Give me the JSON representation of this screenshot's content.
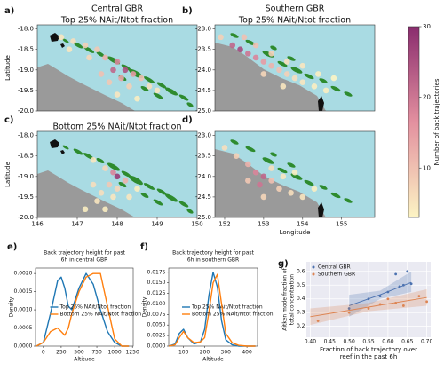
{
  "chart_data": [
    {
      "type": "map",
      "panel": "a)",
      "title": "Central GBR",
      "subtitle": "Top 25% NAit/Ntot fraction",
      "ylabel": "Latitude",
      "xlim": [
        146,
        150
      ],
      "ylim": [
        -20.0,
        -17.9
      ],
      "yticks": [
        {
          "value": -18.0,
          "label": "-18.0"
        },
        {
          "value": -18.5,
          "label": "-18.5"
        },
        {
          "value": -19.0,
          "label": "-19.0"
        },
        {
          "value": -19.5,
          "label": "-19.5"
        },
        {
          "value": -20.0,
          "label": "-20.0"
        }
      ],
      "x": [
        146.6,
        146.9,
        147.2,
        147.5,
        147.3,
        147.7,
        148.0,
        147.9,
        148.2,
        148.4,
        148.1,
        148.6,
        147.8,
        148.3,
        148.8,
        149.0,
        148.0,
        148.5,
        147.6,
        146.8
      ],
      "y": [
        -18.2,
        -18.3,
        -18.4,
        -18.5,
        -18.7,
        -18.7,
        -18.8,
        -19.0,
        -19.0,
        -19.1,
        -19.2,
        -19.2,
        -19.3,
        -19.4,
        -19.4,
        -19.5,
        -19.6,
        -19.7,
        -19.1,
        -18.5
      ],
      "values": [
        5,
        6,
        8,
        9,
        7,
        12,
        18,
        22,
        25,
        15,
        14,
        10,
        9,
        8,
        6,
        5,
        5,
        4,
        10,
        5
      ]
    },
    {
      "type": "map",
      "panel": "b)",
      "title": "Southern GBR",
      "subtitle": "Top 25% NAit/Ntot fraction",
      "xlim": [
        151.75,
        155.85
      ],
      "ylim": [
        -25.0,
        -22.9
      ],
      "yticks": [
        {
          "value": -23.0,
          "label": "-23.0"
        },
        {
          "value": -23.5,
          "label": "-23.5"
        },
        {
          "value": -24.0,
          "label": "-24.0"
        },
        {
          "value": -24.5,
          "label": "-24.5"
        },
        {
          "value": -25.0,
          "label": "-25.0"
        }
      ],
      "x": [
        151.9,
        152.2,
        152.4,
        152.6,
        152.8,
        153.0,
        153.2,
        153.4,
        153.6,
        153.8,
        154.0,
        154.3,
        154.6,
        153.0,
        152.8,
        153.2,
        153.6,
        154.0,
        154.4,
        154.8,
        152.5,
        153.5
      ],
      "y": [
        -23.2,
        -23.4,
        -23.5,
        -23.6,
        -23.7,
        -23.8,
        -23.9,
        -24.0,
        -24.1,
        -24.2,
        -24.3,
        -24.4,
        -24.5,
        -24.1,
        -23.4,
        -23.6,
        -23.8,
        -23.9,
        -24.1,
        -24.2,
        -23.2,
        -24.4
      ],
      "values": [
        8,
        22,
        26,
        20,
        18,
        15,
        12,
        10,
        8,
        6,
        5,
        4,
        4,
        7,
        10,
        8,
        6,
        5,
        4,
        3,
        10,
        5
      ]
    },
    {
      "type": "map",
      "panel": "c)",
      "subtitle": "Bottom 25% NAit/Ntot fraction",
      "ylabel": "Latitude",
      "xlim": [
        146,
        150
      ],
      "ylim": [
        -20.0,
        -17.9
      ],
      "xticks": [
        146,
        147,
        148,
        149,
        150
      ],
      "yticks": [
        {
          "value": -18.0,
          "label": "-18.0"
        },
        {
          "value": -18.5,
          "label": "-18.5"
        },
        {
          "value": -19.0,
          "label": "-19.0"
        },
        {
          "value": -19.5,
          "label": "-19.5"
        },
        {
          "value": -20.0,
          "label": "-20.0"
        }
      ],
      "x": [
        147.4,
        147.7,
        147.9,
        148.0,
        148.2,
        147.8,
        148.0,
        147.6,
        147.9,
        147.5,
        147.7,
        147.2,
        148.3,
        147.4,
        148.5
      ],
      "y": [
        -18.6,
        -18.8,
        -18.9,
        -19.0,
        -19.1,
        -19.2,
        -19.3,
        -19.4,
        -19.5,
        -19.6,
        -19.8,
        -19.8,
        -19.5,
        -19.2,
        -19.3
      ],
      "values": [
        5,
        7,
        18,
        28,
        12,
        9,
        7,
        6,
        5,
        5,
        4,
        4,
        5,
        6,
        4
      ]
    },
    {
      "type": "map",
      "panel": "d)",
      "xlabel": "Longitude",
      "xlim": [
        151.75,
        155.85
      ],
      "ylim": [
        -25.0,
        -22.9
      ],
      "xticks": [
        152,
        153,
        154,
        155
      ],
      "yticks": [
        {
          "value": -23.0,
          "label": "-23.0"
        },
        {
          "value": -23.5,
          "label": "-23.5"
        },
        {
          "value": -24.0,
          "label": "-24.0"
        },
        {
          "value": -24.5,
          "label": "-24.5"
        },
        {
          "value": -25.0,
          "label": "-25.0"
        }
      ],
      "x": [
        152.0,
        152.3,
        152.6,
        152.8,
        153.0,
        152.9,
        153.2,
        153.4,
        153.7,
        154.0,
        153.2,
        153.5,
        153.0,
        152.6,
        154.3,
        153.8
      ],
      "y": [
        -23.3,
        -23.5,
        -23.7,
        -23.9,
        -24.0,
        -24.2,
        -24.1,
        -24.3,
        -24.4,
        -24.5,
        -23.8,
        -24.0,
        -24.5,
        -24.1,
        -24.3,
        -23.9
      ],
      "values": [
        6,
        8,
        12,
        18,
        22,
        20,
        10,
        8,
        6,
        5,
        6,
        5,
        7,
        9,
        4,
        4
      ]
    },
    {
      "type": "colorbar",
      "label": "Number of back trajectories",
      "lim": [
        3,
        30
      ],
      "ticks": [
        10,
        20,
        30
      ]
    },
    {
      "type": "line",
      "panel": "e)",
      "title": [
        "Back trajectory height for past",
        "6h in central GBR"
      ],
      "xlabel": "Altitude",
      "ylabel": "Density",
      "xlim": [
        -110,
        1260
      ],
      "ylim": [
        0,
        0.00215
      ],
      "xticks": [
        0,
        250,
        500,
        750,
        1000,
        1250
      ],
      "yticks": [
        {
          "value": 0,
          "label": "0.0000"
        },
        {
          "value": 0.0005,
          "label": "0.0005"
        },
        {
          "value": 0.001,
          "label": "0.0010"
        },
        {
          "value": 0.0015,
          "label": "0.0015"
        },
        {
          "value": 0.002,
          "label": "0.0020"
        }
      ],
      "x": [
        -100,
        0,
        100,
        200,
        250,
        300,
        350,
        400,
        500,
        600,
        700,
        800,
        900,
        1000,
        1100,
        1200
      ],
      "series": [
        {
          "name": "Top 25% NAit/Ntot fraction",
          "color": "#1f77b4",
          "values": [
            0,
            0.0001,
            0.0009,
            0.0018,
            0.0019,
            0.0016,
            0.0011,
            0.001,
            0.0016,
            0.002,
            0.0017,
            0.001,
            0.0004,
            0.0001,
            0,
            0
          ]
        },
        {
          "name": "Bottom 25% NAit/Ntot fraction",
          "color": "#ff7f0e",
          "values": [
            0,
            0.0001,
            0.0004,
            0.0005,
            0.0004,
            0.0003,
            0.0005,
            0.0009,
            0.0015,
            0.0019,
            0.002,
            0.002,
            0.0011,
            0.0002,
            0,
            0
          ]
        }
      ]
    },
    {
      "type": "line",
      "panel": "f)",
      "title": [
        "Back trajectory height for past",
        "6h in southern GBR"
      ],
      "xlabel": "Altitude",
      "ylabel": "Density",
      "xlim": [
        30,
        450
      ],
      "ylim": [
        0,
        0.0185
      ],
      "xticks": [
        100,
        200,
        300,
        400
      ],
      "yticks": [
        {
          "value": 0,
          "label": "0.0000"
        },
        {
          "value": 0.0025,
          "label": "0.0025"
        },
        {
          "value": 0.005,
          "label": "0.0050"
        },
        {
          "value": 0.0075,
          "label": "0.0075"
        },
        {
          "value": 0.01,
          "label": "0.0100"
        },
        {
          "value": 0.0125,
          "label": "0.0125"
        },
        {
          "value": 0.015,
          "label": "0.0150"
        },
        {
          "value": 0.0175,
          "label": "0.0175"
        }
      ],
      "x": [
        30,
        60,
        80,
        100,
        120,
        150,
        180,
        200,
        220,
        240,
        260,
        280,
        300,
        330,
        360,
        400,
        440
      ],
      "series": [
        {
          "name": "Top 25% NAit/Ntot fraction",
          "color": "#1f77b4",
          "values": [
            0,
            0.0005,
            0.003,
            0.004,
            0.002,
            0.0005,
            0.001,
            0.004,
            0.012,
            0.0175,
            0.014,
            0.006,
            0.0015,
            0.0003,
            0,
            0,
            0
          ]
        },
        {
          "name": "Bottom 25% NAit/Ntot fraction",
          "color": "#ff7f0e",
          "values": [
            0,
            0.0003,
            0.002,
            0.0035,
            0.002,
            0.0008,
            0.001,
            0.002,
            0.008,
            0.015,
            0.017,
            0.01,
            0.003,
            0.0008,
            0.0002,
            0,
            0
          ]
        }
      ]
    },
    {
      "type": "scatter",
      "panel": "g)",
      "xlabel": [
        "Fraction of back trajectory over",
        "reef in the past 6h"
      ],
      "ylabel": [
        "Aitken mode fraction of",
        "total concentration"
      ],
      "xlim": [
        0.39,
        0.71
      ],
      "ylim": [
        0.12,
        0.67
      ],
      "grid": true,
      "xticks": [
        {
          "value": 0.4,
          "label": "0.40"
        },
        {
          "value": 0.45,
          "label": "0.45"
        },
        {
          "value": 0.5,
          "label": "0.50"
        },
        {
          "value": 0.55,
          "label": "0.55"
        },
        {
          "value": 0.6,
          "label": "0.60"
        },
        {
          "value": 0.65,
          "label": "0.65"
        },
        {
          "value": 0.7,
          "label": "0.70"
        }
      ],
      "yticks": [
        0.2,
        0.3,
        0.4,
        0.5,
        0.6
      ],
      "series": [
        {
          "name": "Central GBR",
          "color": "#4c72b0",
          "x": [
            0.5,
            0.55,
            0.58,
            0.6,
            0.62,
            0.63,
            0.64,
            0.65,
            0.66
          ],
          "values": [
            0.33,
            0.4,
            0.42,
            0.45,
            0.58,
            0.49,
            0.5,
            0.6,
            0.51
          ],
          "fit_x": [
            0.5,
            0.58,
            0.66
          ],
          "fit_y": [
            0.35,
            0.43,
            0.52
          ],
          "fit_lower": [
            0.27,
            0.4,
            0.45
          ],
          "fit_upper": [
            0.43,
            0.46,
            0.6
          ]
        },
        {
          "name": "Southern GBR",
          "color": "#dd8452",
          "x": [
            0.42,
            0.5,
            0.55,
            0.58,
            0.6,
            0.62,
            0.64,
            0.68,
            0.7
          ],
          "values": [
            0.24,
            0.3,
            0.33,
            0.36,
            0.4,
            0.37,
            0.35,
            0.42,
            0.38
          ],
          "fit_x": [
            0.4,
            0.55,
            0.7
          ],
          "fit_y": [
            0.27,
            0.34,
            0.41
          ],
          "fit_lower": [
            0.21,
            0.31,
            0.35
          ],
          "fit_upper": [
            0.33,
            0.37,
            0.47
          ]
        }
      ]
    }
  ]
}
